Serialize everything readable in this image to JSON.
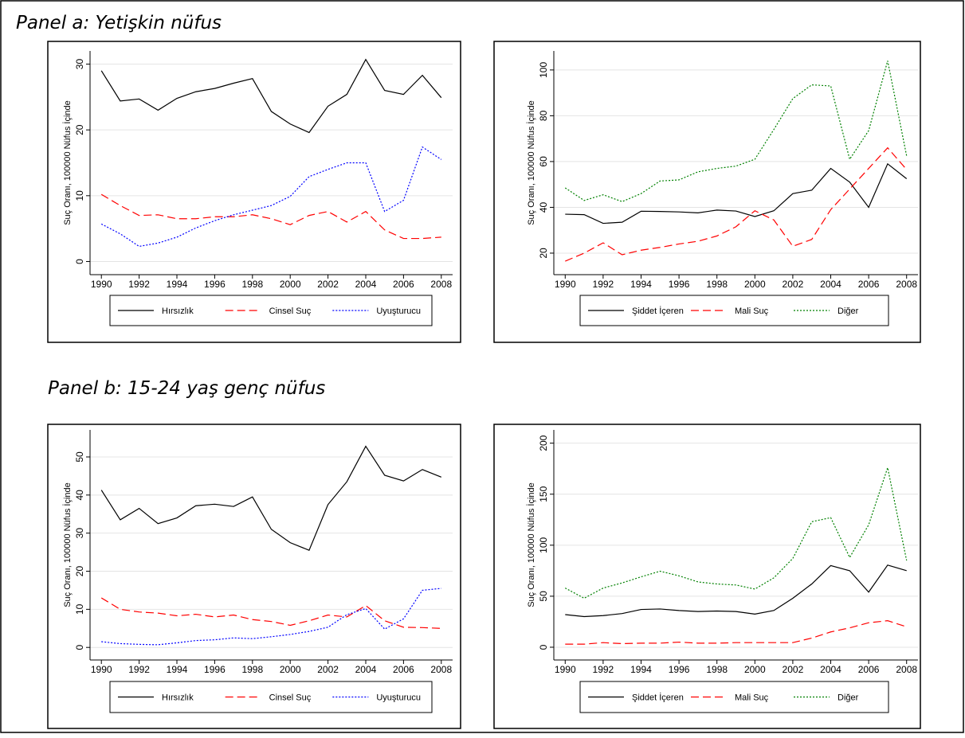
{
  "panels": [
    "Panel a: Yetişkin nüfus",
    "Panel b: 15-24 yaş genç nüfus"
  ],
  "chart_data": [
    {
      "type": "line",
      "ylabel": "Suç Oranı, 100000 Nüfus İçinde",
      "x": [
        1990,
        1991,
        1992,
        1993,
        1994,
        1995,
        1996,
        1997,
        1998,
        1999,
        2000,
        2001,
        2002,
        2003,
        2004,
        2005,
        2006,
        2007,
        2008
      ],
      "xlim": [
        1989.4,
        2008.6
      ],
      "xticks": [
        1990,
        1992,
        1994,
        1996,
        1998,
        2000,
        2002,
        2004,
        2006,
        2008
      ],
      "ylim": [
        -2,
        32
      ],
      "yticks": [
        0,
        10,
        20,
        30
      ],
      "grid": true,
      "series": [
        {
          "name": "Hırsızlık",
          "color": "#000000",
          "style": "solid",
          "values": [
            29.0,
            24.4,
            24.7,
            23.0,
            24.8,
            25.8,
            26.3,
            27.1,
            27.8,
            22.8,
            20.9,
            19.6,
            23.6,
            25.4,
            30.7,
            26.0,
            25.4,
            28.3,
            24.9
          ]
        },
        {
          "name": "Cinsel Suç",
          "color": "#ff0000",
          "style": "dashed",
          "values": [
            10.2,
            8.5,
            7.0,
            7.1,
            6.5,
            6.5,
            6.8,
            6.8,
            7.1,
            6.5,
            5.6,
            7.0,
            7.6,
            6.0,
            7.6,
            4.8,
            3.5,
            3.5,
            3.7
          ]
        },
        {
          "name": "Uyuşturucu",
          "color": "#0000ff",
          "style": "dotted",
          "values": [
            5.7,
            4.2,
            2.3,
            2.8,
            3.7,
            5.1,
            6.2,
            7.1,
            7.8,
            8.5,
            9.9,
            12.9,
            14.0,
            15.0,
            15.0,
            7.6,
            9.3,
            17.4,
            15.5
          ]
        }
      ]
    },
    {
      "type": "line",
      "ylabel": "Suç Oranı, 100000 Nüfus İçinde",
      "x": [
        1990,
        1991,
        1992,
        1993,
        1994,
        1995,
        1996,
        1997,
        1998,
        1999,
        2000,
        2001,
        2002,
        2003,
        2004,
        2005,
        2006,
        2007,
        2008
      ],
      "xlim": [
        1989.4,
        2008.6
      ],
      "xticks": [
        1990,
        1992,
        1994,
        1996,
        1998,
        2000,
        2002,
        2004,
        2006,
        2008
      ],
      "ylim": [
        10.6,
        108.3
      ],
      "yticks": [
        20,
        40,
        60,
        80,
        100
      ],
      "grid": true,
      "series": [
        {
          "name": "Şiddet İçeren",
          "color": "#000000",
          "style": "solid",
          "values": [
            37,
            36.8,
            33,
            33.5,
            38.3,
            38.2,
            38,
            37.6,
            38.8,
            38.4,
            36,
            38.5,
            46,
            47.5,
            57,
            51,
            40,
            59,
            52.5
          ]
        },
        {
          "name": "Mali Suç",
          "color": "#ff0000",
          "style": "dashed",
          "values": [
            16.5,
            20,
            24.5,
            19.3,
            21.3,
            22.5,
            24,
            25.2,
            27.5,
            31.5,
            38.5,
            34.5,
            23,
            26,
            39,
            48,
            57,
            66,
            56.5
          ]
        },
        {
          "name": "Diğer",
          "color": "#008000",
          "style": "dotted",
          "values": [
            48.5,
            43,
            45.5,
            42.5,
            46,
            51.5,
            52,
            55.5,
            57,
            58,
            61,
            74,
            87.5,
            93.5,
            93,
            61,
            73.5,
            104,
            62.5
          ]
        }
      ]
    },
    {
      "type": "line",
      "ylabel": "Suç Oranı, 100000 Nüfus İçinde",
      "x": [
        1990,
        1991,
        1992,
        1993,
        1994,
        1995,
        1996,
        1997,
        1998,
        1999,
        2000,
        2001,
        2002,
        2003,
        2004,
        2005,
        2006,
        2007,
        2008
      ],
      "xlim": [
        1989.4,
        2008.6
      ],
      "xticks": [
        1990,
        1992,
        1994,
        1996,
        1998,
        2000,
        2002,
        2004,
        2006,
        2008
      ],
      "ylim": [
        -3.3,
        57.1
      ],
      "yticks": [
        0,
        10,
        20,
        30,
        40,
        50
      ],
      "grid": true,
      "series": [
        {
          "name": "Hırsızlık",
          "color": "#000000",
          "style": "solid",
          "values": [
            41.3,
            33.5,
            36.5,
            32.5,
            34,
            37.2,
            37.6,
            37,
            39.5,
            31,
            27.5,
            25.5,
            37.5,
            43.5,
            52.8,
            45.2,
            43.7,
            46.7,
            44.7
          ]
        },
        {
          "name": "Cinsel Suç",
          "color": "#ff0000",
          "style": "dashed",
          "values": [
            13,
            10,
            9.3,
            9,
            8.3,
            8.7,
            8,
            8.5,
            7.3,
            6.8,
            5.8,
            7,
            8.5,
            8,
            11,
            7,
            5.3,
            5.2,
            5
          ]
        },
        {
          "name": "Uyuşturucu",
          "color": "#0000ff",
          "style": "dotted",
          "values": [
            1.5,
            1,
            0.8,
            0.7,
            1.2,
            1.8,
            2,
            2.5,
            2.3,
            2.8,
            3.4,
            4.2,
            5.3,
            8.6,
            10.2,
            4.8,
            7.5,
            15,
            15.5
          ]
        }
      ]
    },
    {
      "type": "line",
      "ylabel": "Suç Oranı, 100000 Nüfus İçinde",
      "x": [
        1990,
        1991,
        1992,
        1993,
        1994,
        1995,
        1996,
        1997,
        1998,
        1999,
        2000,
        2001,
        2002,
        2003,
        2004,
        2005,
        2006,
        2007,
        2008
      ],
      "xlim": [
        1989.4,
        2008.6
      ],
      "xticks": [
        1990,
        1992,
        1994,
        1996,
        1998,
        2000,
        2002,
        2004,
        2006,
        2008
      ],
      "ylim": [
        -12.5,
        213
      ],
      "yticks": [
        0,
        50,
        100,
        150,
        200
      ],
      "grid": true,
      "series": [
        {
          "name": "Şiddet İçeren",
          "color": "#000000",
          "style": "solid",
          "values": [
            32,
            30,
            31,
            33,
            37,
            37.5,
            36,
            35,
            35.5,
            35,
            32.5,
            36,
            48,
            62,
            80,
            75,
            54,
            80.5,
            75
          ]
        },
        {
          "name": "Mali Suç",
          "color": "#ff0000",
          "style": "dashed",
          "values": [
            3,
            3,
            4.5,
            3.5,
            4,
            4,
            5,
            4,
            4,
            4.5,
            4.5,
            4.5,
            4.5,
            9,
            15,
            19,
            24,
            26,
            20
          ]
        },
        {
          "name": "Diğer",
          "color": "#008000",
          "style": "dotted",
          "values": [
            58,
            48,
            58,
            63,
            69,
            74.5,
            70,
            64,
            62,
            61,
            57,
            68,
            87,
            123,
            127,
            88,
            120,
            176,
            85
          ]
        }
      ]
    }
  ]
}
